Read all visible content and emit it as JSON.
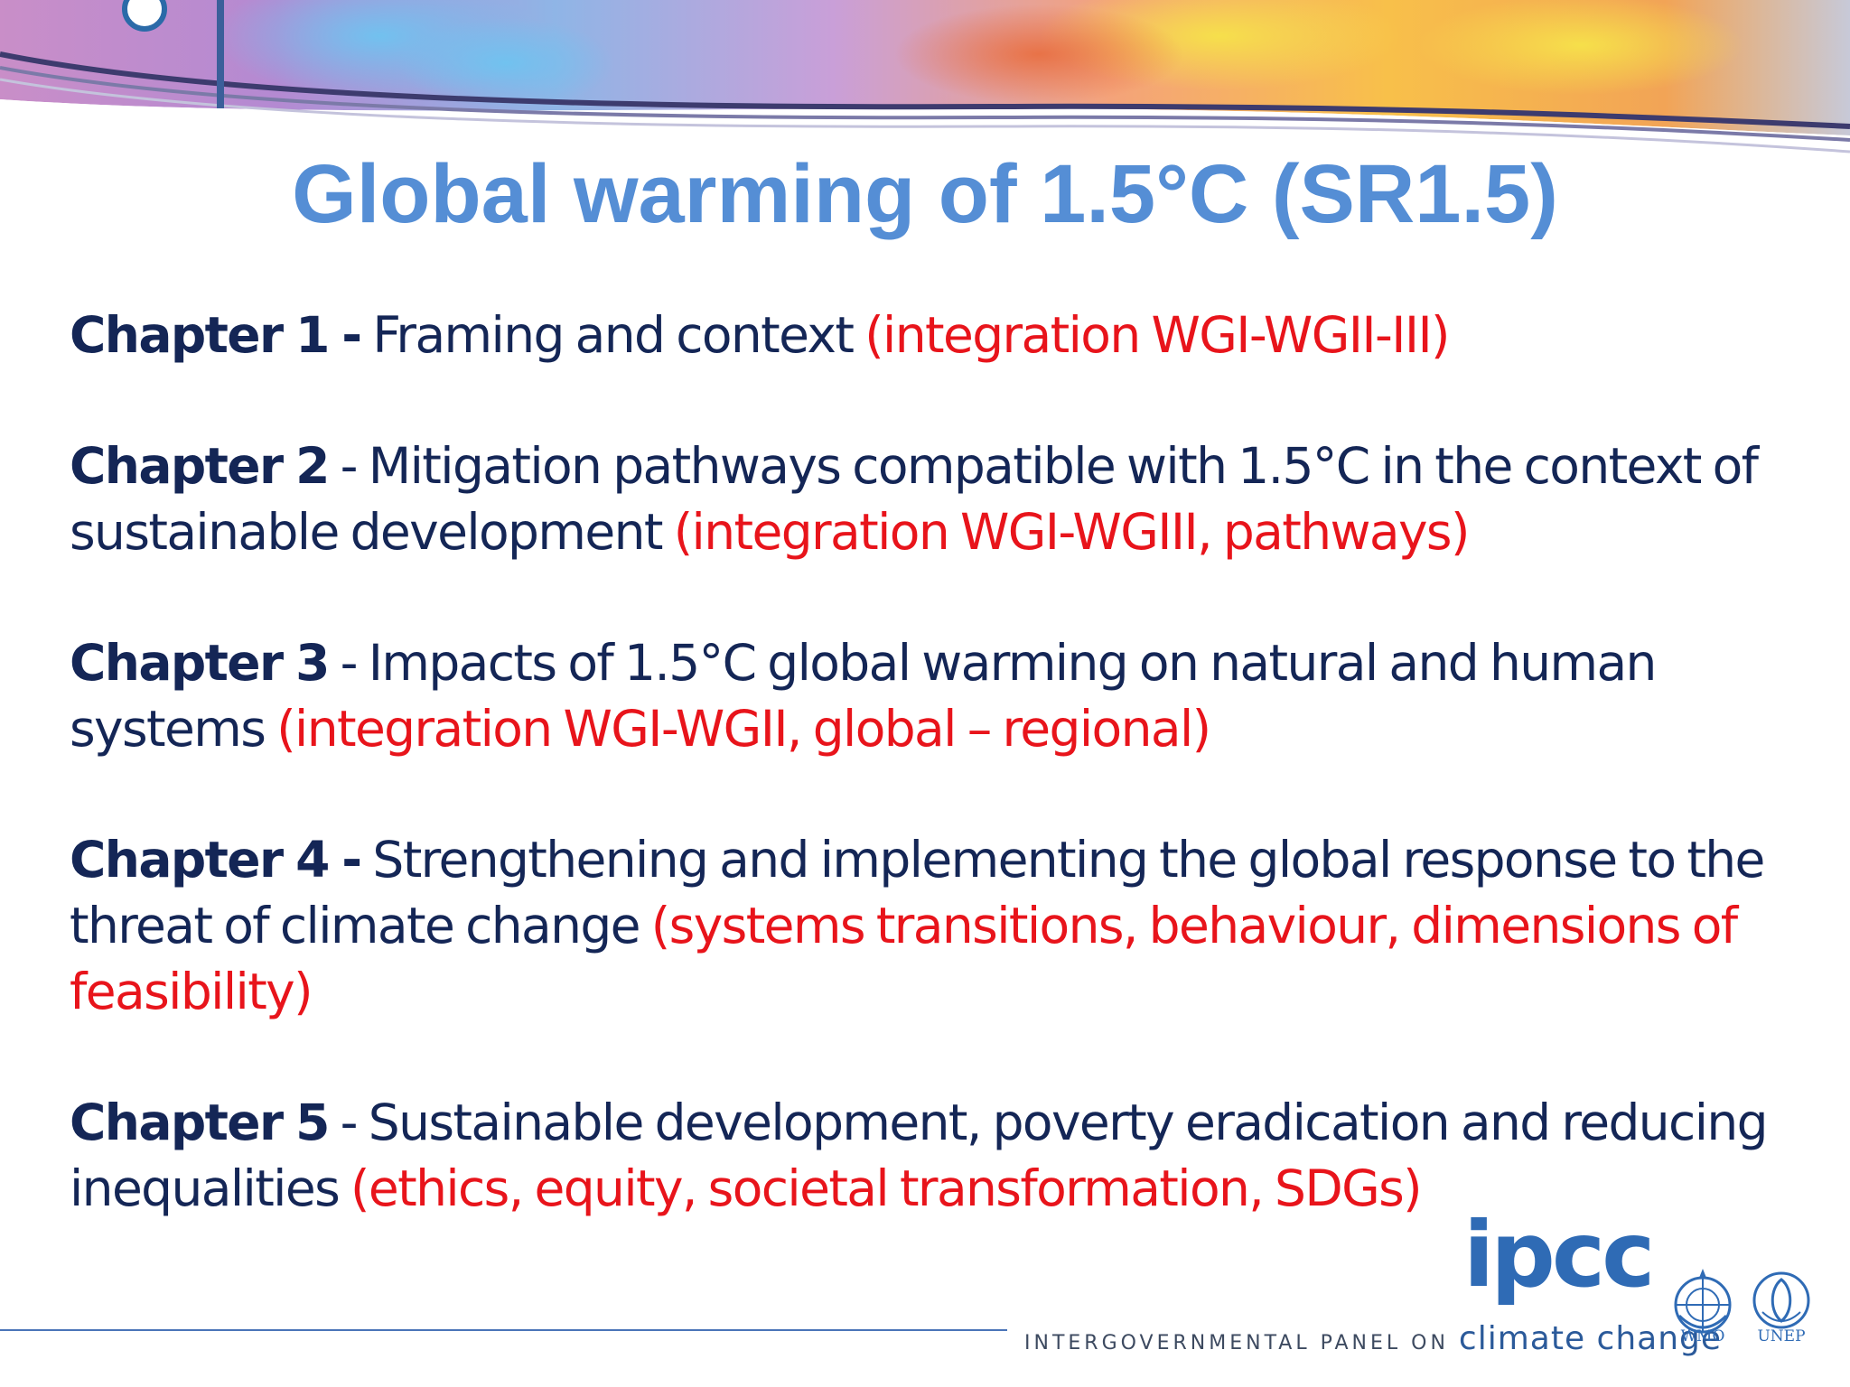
{
  "slide": {
    "title": "Global warming of 1.5°C (SR1.5)",
    "chapters": [
      {
        "number": "Chapter 1 -",
        "text": " Framing and context ",
        "topics": "(integration WGI-WGII-III)"
      },
      {
        "number": "Chapter 2",
        "text": " - Mitigation pathways compatible with 1.5°C in the context of sustainable development ",
        "topics": "(integration WGI-WGIII, pathways)"
      },
      {
        "number": "Chapter 3",
        "text": " - Impacts of 1.5°C global warming on natural and human systems ",
        "topics": "(integration WGI-WGII, global – regional)"
      },
      {
        "number": "Chapter 4 -",
        "text": " Strengthening and implementing the global response to the threat of climate change  ",
        "topics": "(systems transitions, behaviour, dimensions of feasibility)"
      },
      {
        "number": "Chapter 5",
        "text": " - Sustainable development, poverty eradication and reducing inequalities ",
        "topics": "(ethics, equity, societal transformation, SDGs)"
      }
    ]
  },
  "footer": {
    "ipcc_logo": "ipcc",
    "tagline_prefix": "INTERGOVERNMENTAL PANEL ON ",
    "tagline_strong": "climate change",
    "wmo_label": "WMO",
    "unep_label": "UNEP"
  },
  "colors": {
    "title": "#558ed5",
    "chapter_text": "#142656",
    "topics": "#e8141b",
    "logo": "#2f6bb5"
  },
  "icons": [
    "decorative-banner",
    "wmo-emblem-icon",
    "unep-emblem-icon"
  ]
}
